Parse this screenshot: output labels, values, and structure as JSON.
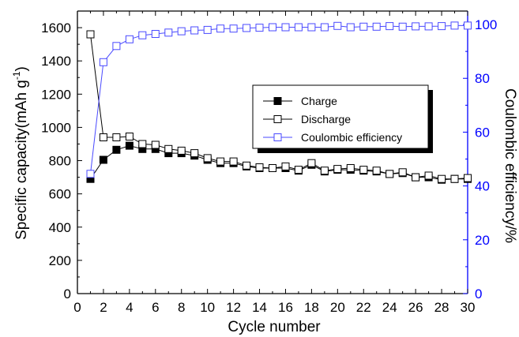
{
  "chart_data": {
    "type": "line",
    "xlabel": "Cycle number",
    "ylabel": "Specific capacity(mAh g",
    "ylabel_unit_sup": "-1",
    "ylabel_close": ")",
    "y2label": "Coulombic efficiency/%",
    "xlim": [
      0,
      30
    ],
    "ylim": [
      0,
      1700
    ],
    "y2lim": [
      0,
      105
    ],
    "x_ticks": [
      0,
      2,
      4,
      6,
      8,
      10,
      12,
      14,
      16,
      18,
      20,
      22,
      24,
      26,
      28,
      30
    ],
    "y_ticks": [
      0,
      200,
      400,
      600,
      800,
      1000,
      1200,
      1400,
      1600
    ],
    "y2_ticks": [
      0,
      20,
      40,
      60,
      80,
      100
    ],
    "legend_position": "center-right",
    "grid": false,
    "colors": {
      "axis_left": "#000000",
      "axis_right": "#0000ff",
      "charge": "#000000",
      "discharge": "#000000",
      "efficiency": "#4a4aff"
    },
    "x": [
      1,
      2,
      3,
      4,
      5,
      6,
      7,
      8,
      9,
      10,
      11,
      12,
      13,
      14,
      15,
      16,
      17,
      18,
      19,
      20,
      21,
      22,
      23,
      24,
      25,
      26,
      27,
      28,
      29,
      30
    ],
    "series": [
      {
        "name": "Charge",
        "axis": "left",
        "marker": "filled-square",
        "values": [
          690,
          805,
          865,
          890,
          870,
          870,
          845,
          845,
          830,
          805,
          785,
          785,
          765,
          755,
          755,
          755,
          740,
          775,
          735,
          745,
          745,
          740,
          735,
          720,
          725,
          700,
          700,
          685,
          690,
          690
        ]
      },
      {
        "name": "Discharge",
        "axis": "left",
        "marker": "open-square",
        "values": [
          1560,
          940,
          940,
          945,
          900,
          895,
          870,
          860,
          845,
          815,
          795,
          795,
          770,
          760,
          755,
          765,
          745,
          785,
          740,
          750,
          755,
          745,
          740,
          720,
          730,
          700,
          710,
          690,
          690,
          695
        ]
      },
      {
        "name": "Coulombic efficiency",
        "axis": "right",
        "marker": "open-square",
        "values": [
          44.5,
          86,
          92,
          94.5,
          96,
          96.5,
          97,
          97.5,
          97.8,
          98,
          98.5,
          98.5,
          98.7,
          98.8,
          99,
          99,
          99,
          99,
          99,
          99.5,
          99,
          99.2,
          99.2,
          99.4,
          99.2,
          99.3,
          99.3,
          99.4,
          99.6,
          99.6
        ]
      }
    ]
  }
}
